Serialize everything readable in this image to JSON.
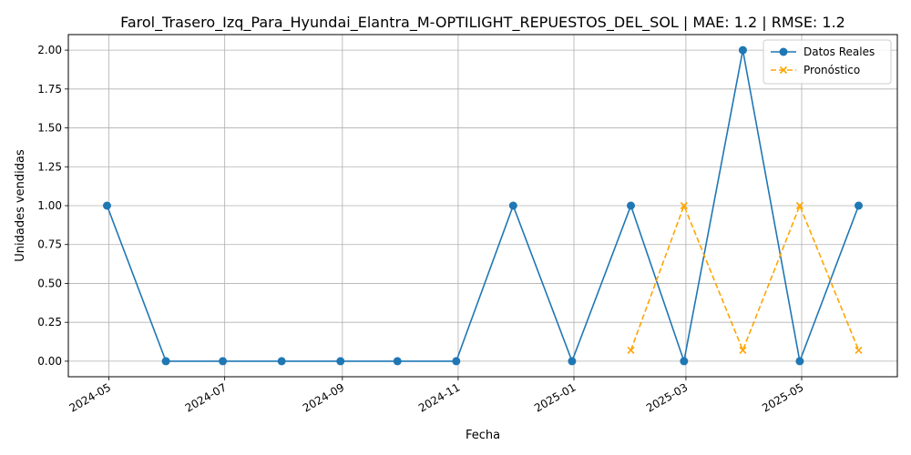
{
  "chart_data": {
    "type": "line",
    "title": "Farol_Trasero_Izq_Para_Hyundai_Elantra_M-OPTILIGHT_REPUESTOS_DEL_SOL | MAE: 1.2 | RMSE: 1.2",
    "xlabel": "Fecha",
    "ylabel": "Unidades vendidas",
    "ylim": [
      -0.1,
      2.1
    ],
    "yticks": [
      0.0,
      0.25,
      0.5,
      0.75,
      1.0,
      1.25,
      1.5,
      1.75,
      2.0
    ],
    "ytick_labels": [
      "0.00",
      "0.25",
      "0.50",
      "0.75",
      "1.00",
      "1.25",
      "1.50",
      "1.75",
      "2.00"
    ],
    "xticks": [
      "2024-05",
      "2024-07",
      "2024-09",
      "2024-11",
      "2025-01",
      "2025-03",
      "2025-05"
    ],
    "grid": true,
    "legend_position": "top-right",
    "series": [
      {
        "name": "Datos Reales",
        "color": "#1f77b4",
        "style": "solid",
        "marker": "circle",
        "x": [
          "2024-04-30",
          "2024-05-31",
          "2024-06-30",
          "2024-07-31",
          "2024-08-31",
          "2024-09-30",
          "2024-10-31",
          "2024-11-30",
          "2024-12-31",
          "2025-01-31",
          "2025-02-28",
          "2025-03-31",
          "2025-04-30",
          "2025-05-31"
        ],
        "values": [
          1,
          0,
          0,
          0,
          0,
          0,
          0,
          1,
          0,
          1,
          0,
          2,
          0,
          1
        ]
      },
      {
        "name": "Pronóstico",
        "color": "#ffa500",
        "style": "dashed",
        "marker": "x",
        "x": [
          "2025-01-31",
          "2025-02-28",
          "2025-03-31",
          "2025-04-30",
          "2025-05-31"
        ],
        "values": [
          0.07,
          1.0,
          0.07,
          1.0,
          0.07
        ]
      }
    ]
  }
}
